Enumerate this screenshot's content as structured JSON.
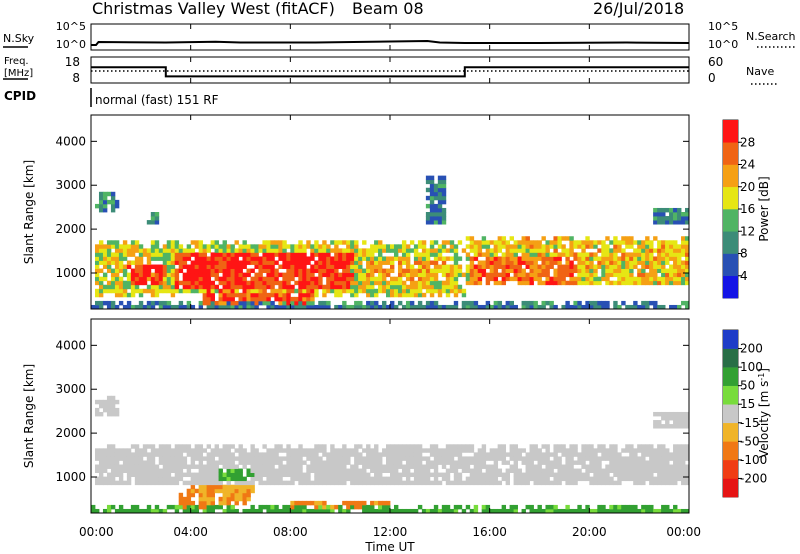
{
  "header": {
    "title": "Christmas Valley West (fitACF)",
    "beam": "Beam 08",
    "date": "26/Jul/2018"
  },
  "noise_panel": {
    "left_label": "N.Sky",
    "left_ticks": [
      "10^5",
      "10^0"
    ],
    "right_label": "N.Search",
    "right_ticks": [
      "10^5",
      "10^0"
    ]
  },
  "freq_panel": {
    "left_label_line1": "Freq.",
    "left_label_line2": "[MHz]",
    "left_ticks": [
      "18",
      "8"
    ],
    "right_label": "Nave",
    "right_ticks": [
      "60",
      "0"
    ],
    "cpid_label": "CPID",
    "cpid_text": "normal (fast) 151 RF"
  },
  "power_panel": {
    "ylabel": "Slant Range [km]",
    "yticks": [
      "4000",
      "3000",
      "2000",
      "1000"
    ],
    "colorbar_label": "Power [dB]",
    "colorbar_ticks": [
      "28",
      "24",
      "20",
      "16",
      "12",
      "8",
      "4"
    ],
    "colors": [
      "#1414e6",
      "#2850b4",
      "#3c8c78",
      "#50b464",
      "#e6e614",
      "#f5a014",
      "#f06414",
      "#ff1414"
    ]
  },
  "velocity_panel": {
    "ylabel": "Slant Range [km]",
    "yticks": [
      "4000",
      "3000",
      "2000",
      "1000"
    ],
    "colorbar_label": "Velocity [m s",
    "colorbar_label_sup": "-1",
    "colorbar_label_end": "]",
    "colorbar_ticks": [
      "200",
      "100",
      "50",
      "15",
      "-15",
      "-50",
      "-100",
      "-200"
    ],
    "colors": [
      "#1e3cc8",
      "#286e46",
      "#32a032",
      "#78dc3c",
      "#c8c8c8",
      "#f0b428",
      "#f07814",
      "#f03c14",
      "#e61414"
    ]
  },
  "x_axis": {
    "ticks": [
      "00:00",
      "04:00",
      "08:00",
      "12:00",
      "16:00",
      "20:00",
      "00:00"
    ],
    "xlabel": "Time UT"
  },
  "chart_data": [
    {
      "type": "line",
      "series": [
        {
          "name": "N.Sky",
          "x": [
            0,
            0.2,
            0.3,
            3,
            5,
            6,
            9,
            13.5,
            14,
            15,
            18,
            21.5,
            24
          ],
          "y": [
            0.3,
            0.3,
            0.6,
            0.55,
            0.62,
            0.55,
            0.55,
            0.7,
            0.55,
            0.5,
            0.5,
            0.55,
            0.5
          ]
        }
      ],
      "xlim": [
        0,
        24
      ]
    },
    {
      "type": "line",
      "series": [
        {
          "name": "Freq.",
          "x": [
            0,
            3,
            3,
            15,
            15,
            24
          ],
          "y": [
            14,
            14,
            10,
            10,
            14,
            14
          ]
        }
      ],
      "xlim": [
        0,
        24
      ],
      "ylim": [
        8,
        18
      ]
    },
    {
      "type": "heatmap",
      "title": "Power [dB]",
      "xlabel": "",
      "ylabel": "Slant Range [km]",
      "xlim": [
        0,
        24
      ],
      "ylim": [
        180,
        4600
      ],
      "legend_range": [
        0,
        32
      ],
      "regions": [
        {
          "t0": 0.2,
          "t1": 1.2,
          "r0": 2400,
          "r1": 2850,
          "v": 11
        },
        {
          "t0": 2.2,
          "t1": 2.7,
          "r0": 2100,
          "r1": 2400,
          "v": 10
        },
        {
          "t0": 0.1,
          "t1": 15.0,
          "r0": 500,
          "r1": 1700,
          "v": 18
        },
        {
          "t0": 1.5,
          "t1": 3.0,
          "r0": 700,
          "r1": 1200,
          "v": 28
        },
        {
          "t0": 3.3,
          "t1": 10.5,
          "r0": 650,
          "r1": 1450,
          "v": 29
        },
        {
          "t0": 4.5,
          "t1": 9.0,
          "r0": 250,
          "r1": 600,
          "v": 27
        },
        {
          "t0": 11.0,
          "t1": 14.5,
          "r0": 800,
          "r1": 1300,
          "v": 22
        },
        {
          "t0": 15.0,
          "t1": 24.0,
          "r0": 700,
          "r1": 1800,
          "v": 20
        },
        {
          "t0": 15.2,
          "t1": 19.5,
          "r0": 750,
          "r1": 1400,
          "v": 25
        },
        {
          "t0": 13.5,
          "t1": 14.3,
          "r0": 2100,
          "r1": 3200,
          "v": 9
        },
        {
          "t0": 22.5,
          "t1": 24.0,
          "r0": 2100,
          "r1": 2500,
          "v": 10
        },
        {
          "t0": 0.0,
          "t1": 24.0,
          "r0": 180,
          "r1": 330,
          "v": 9
        }
      ]
    },
    {
      "type": "heatmap",
      "title": "Velocity [m s-1]",
      "xlabel": "Time UT",
      "ylabel": "Slant Range [km]",
      "xlim": [
        0,
        24
      ],
      "ylim": [
        180,
        4600
      ],
      "legend_range": [
        -200,
        200
      ],
      "regions": [
        {
          "t0": 0.1,
          "t1": 24.0,
          "r0": 800,
          "r1": 1700,
          "v": 0
        },
        {
          "t0": 3.5,
          "t1": 5.0,
          "r0": 250,
          "r1": 700,
          "v": -60
        },
        {
          "t0": 4.0,
          "t1": 6.5,
          "r0": 400,
          "r1": 800,
          "v": -30
        },
        {
          "t0": 5.0,
          "t1": 6.5,
          "r0": 900,
          "r1": 1200,
          "v": 40
        },
        {
          "t0": 8.0,
          "t1": 12.0,
          "r0": 250,
          "r1": 500,
          "v": -40
        },
        {
          "t0": 0.0,
          "t1": 24.0,
          "r0": 180,
          "r1": 330,
          "v": 40
        },
        {
          "t0": 0.2,
          "t1": 1.2,
          "r0": 2400,
          "r1": 2850,
          "v": 0
        },
        {
          "t0": 22.5,
          "t1": 24.0,
          "r0": 2100,
          "r1": 2500,
          "v": 0
        }
      ]
    }
  ]
}
